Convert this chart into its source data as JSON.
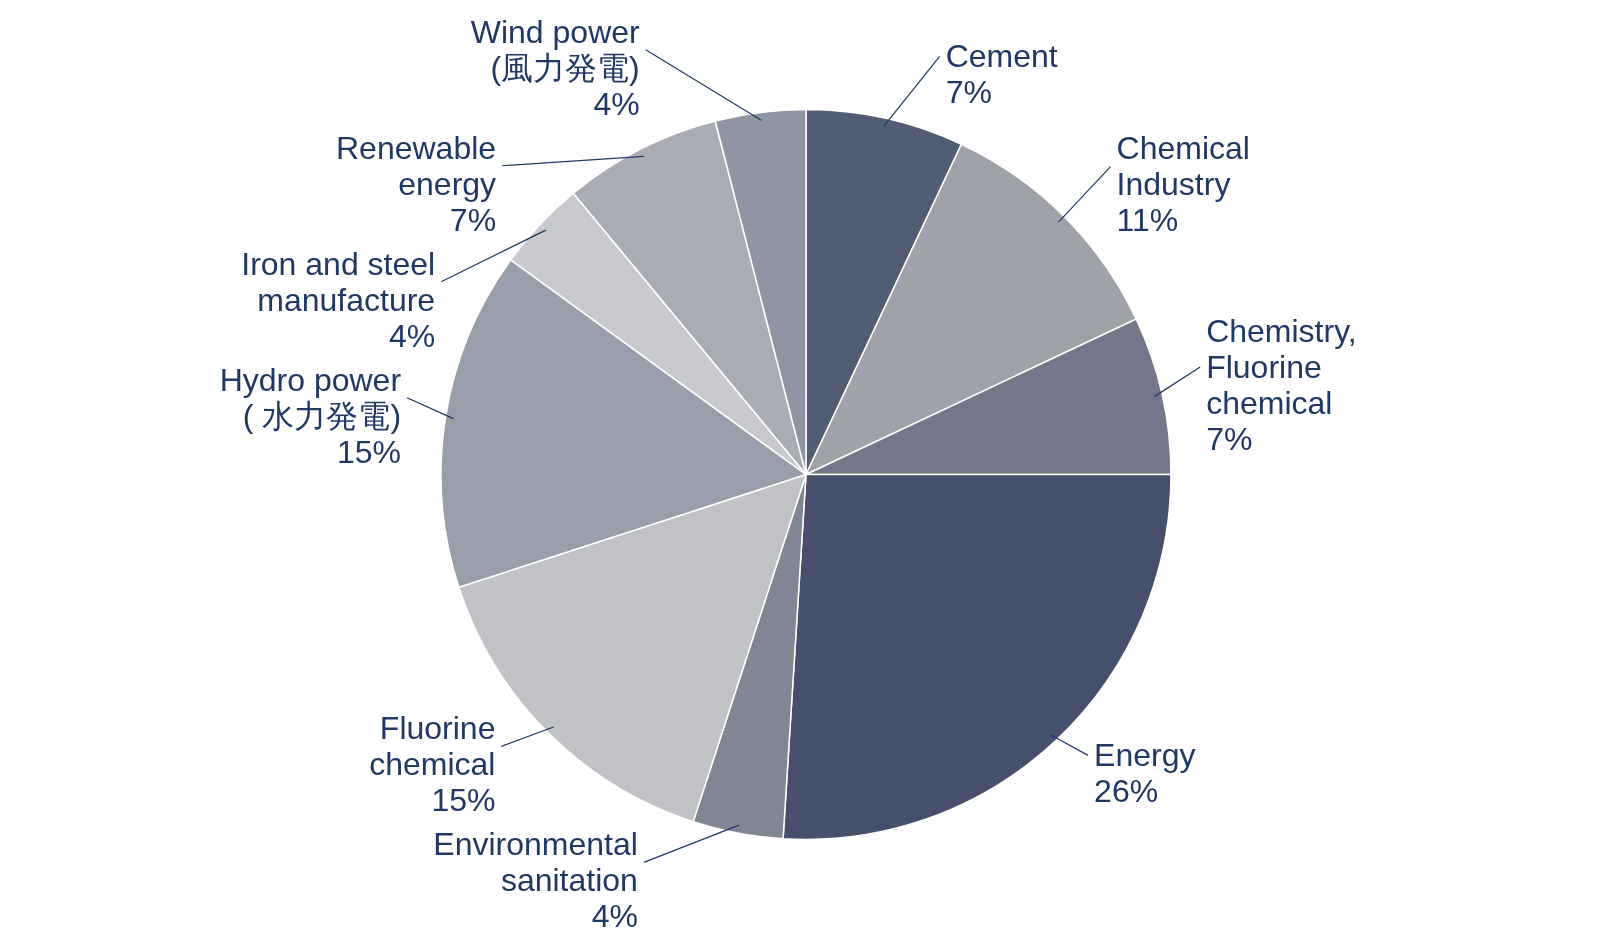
{
  "chart_data": {
    "type": "pie",
    "categories": [
      "Cement",
      "Chemical Industry",
      "Chemistry, Fluorine chemical",
      "Energy",
      "Environmental sanitation",
      "Fluorine chemical",
      "Hydro power ( 水力発電)",
      "Iron and steel manufacture",
      "Renewable energy",
      "Wind  power (風力発電)"
    ],
    "values": [
      7,
      11,
      7,
      26,
      4,
      15,
      15,
      4,
      7,
      4
    ],
    "value_labels": [
      "7%",
      "11%",
      "7%",
      "26%",
      "4%",
      "15%",
      "15%",
      "4%",
      "7%",
      "4%"
    ],
    "colors": [
      "#525c73",
      "#a0a2aa",
      "#737789",
      "#46506c",
      "#818694",
      "#c1c2c6",
      "#989eaa",
      "#c8c9ce",
      "#a9abb5",
      "#9095a3"
    ]
  }
}
